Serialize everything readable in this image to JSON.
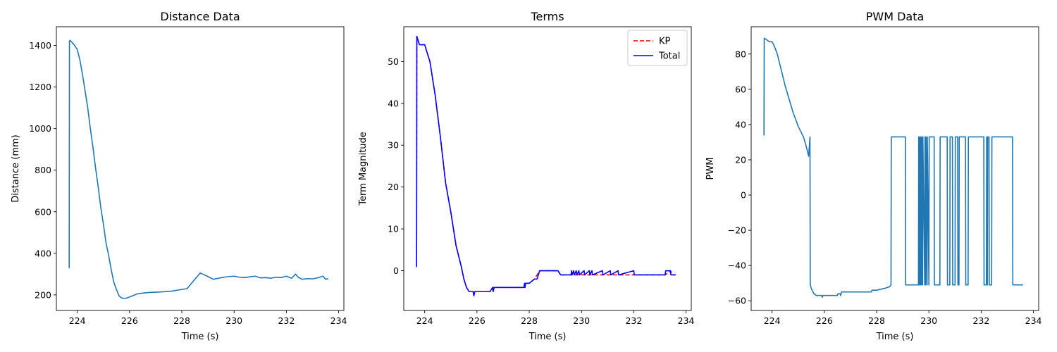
{
  "colors": {
    "default": "#1f77b4",
    "kp": "#ff0000",
    "total": "#0000ff"
  },
  "chart_data": [
    {
      "type": "line",
      "title": "Distance Data",
      "xlabel": "Time (s)",
      "ylabel": "Distance (mm)",
      "xlim": [
        223.2,
        234.2
      ],
      "ylim": [
        125,
        1490
      ],
      "xticks": [
        224,
        226,
        228,
        230,
        232,
        234
      ],
      "yticks": [
        200,
        400,
        600,
        800,
        1000,
        1200,
        1400
      ],
      "series": [
        {
          "color": "#1f77b4",
          "style": "solid",
          "x": [
            223.68,
            223.69,
            223.7,
            223.72,
            223.8,
            223.9,
            224.0,
            224.1,
            224.2,
            224.3,
            224.4,
            224.5,
            224.6,
            224.7,
            224.8,
            224.9,
            225.0,
            225.1,
            225.2,
            225.3,
            225.4,
            225.5,
            225.6,
            225.7,
            225.8,
            225.9,
            226.0,
            226.1,
            226.2,
            226.3,
            226.4,
            226.6,
            226.8,
            227.0,
            227.3,
            227.6,
            227.9,
            228.2,
            228.4,
            228.6,
            228.7,
            228.8,
            229.0,
            229.2,
            229.4,
            229.6,
            229.8,
            230.0,
            230.2,
            230.4,
            230.6,
            230.8,
            231.0,
            231.2,
            231.4,
            231.6,
            231.8,
            232.0,
            232.2,
            232.35,
            232.45,
            232.6,
            232.8,
            233.0,
            233.2,
            233.4,
            233.5,
            233.6
          ],
          "y": [
            330,
            330,
            1420,
            1425,
            1415,
            1400,
            1380,
            1330,
            1260,
            1180,
            1100,
            1000,
            910,
            810,
            720,
            620,
            540,
            450,
            390,
            320,
            260,
            225,
            195,
            185,
            183,
            185,
            190,
            195,
            200,
            205,
            207,
            210,
            212,
            213,
            215,
            218,
            224,
            230,
            260,
            290,
            305,
            300,
            288,
            275,
            280,
            285,
            288,
            290,
            285,
            283,
            287,
            290,
            282,
            283,
            280,
            285,
            283,
            290,
            280,
            300,
            285,
            275,
            278,
            277,
            282,
            290,
            275,
            278
          ]
        }
      ]
    },
    {
      "type": "line",
      "title": "Terms",
      "xlabel": "Time (s)",
      "ylabel": "Term Magnitude",
      "xlim": [
        223.2,
        234.2
      ],
      "ylim": [
        -9.5,
        58.3
      ],
      "xticks": [
        224,
        226,
        228,
        230,
        232,
        234
      ],
      "yticks": [
        0,
        10,
        20,
        30,
        40,
        50
      ],
      "legend": {
        "position": "top-right",
        "entries": [
          "KP",
          "Total"
        ]
      },
      "series": [
        {
          "name": "KP",
          "color": "#ff0000",
          "style": "dashed",
          "x": [
            223.68,
            223.69,
            223.7,
            223.75,
            223.8,
            224.0,
            224.2,
            224.4,
            224.6,
            224.8,
            225.0,
            225.2,
            225.4,
            225.5,
            225.6,
            225.7,
            225.9,
            226.2,
            226.5,
            226.6,
            227.0,
            227.5,
            227.8,
            227.9,
            228.0,
            228.2,
            228.4,
            228.6,
            229.1,
            229.2,
            230.0,
            231.0,
            232.0,
            232.5,
            233.2,
            233.4,
            233.5,
            233.6
          ],
          "y": [
            1,
            1,
            56,
            55,
            54,
            54,
            50,
            42,
            32,
            21,
            14,
            6,
            1,
            -2,
            -4,
            -5,
            -5,
            -5,
            -5,
            -4,
            -4,
            -4,
            -4,
            -3,
            -3,
            -2,
            0,
            0,
            0,
            -1,
            -1,
            -1,
            -1,
            -1,
            -1,
            0,
            -1,
            -1
          ]
        },
        {
          "name": "Total",
          "color": "#0000ff",
          "style": "solid",
          "x": [
            223.68,
            223.69,
            223.7,
            223.75,
            223.8,
            224.0,
            224.2,
            224.4,
            224.6,
            224.8,
            225.0,
            225.2,
            225.4,
            225.5,
            225.6,
            225.7,
            225.85,
            225.88,
            225.92,
            226.2,
            226.5,
            226.6,
            226.62,
            226.66,
            226.7,
            227.0,
            227.5,
            227.8,
            227.82,
            227.84,
            227.86,
            227.9,
            228.0,
            228.2,
            228.3,
            228.4,
            228.6,
            229.1,
            229.2,
            229.6,
            229.62,
            229.64,
            229.7,
            229.72,
            229.8,
            229.82,
            229.9,
            229.92,
            230.1,
            230.12,
            230.3,
            230.32,
            230.4,
            230.42,
            230.8,
            230.82,
            231.1,
            231.12,
            231.4,
            231.42,
            232.0,
            232.02,
            232.4,
            232.42,
            233.2,
            233.22,
            233.4,
            233.42,
            233.6
          ],
          "y": [
            1,
            1,
            56,
            55,
            54,
            54,
            50,
            42,
            32,
            21,
            14,
            6,
            1,
            -2,
            -4,
            -5,
            -5,
            -6,
            -5,
            -5,
            -5,
            -4,
            -5,
            -4,
            -4,
            -4,
            -4,
            -4,
            -3,
            -4,
            -3,
            -3,
            -3,
            -2,
            -2,
            0,
            0,
            0,
            -1,
            -1,
            0,
            -1,
            0,
            -1,
            0,
            -1,
            0,
            -1,
            0,
            -1,
            0,
            -1,
            0,
            -1,
            0,
            -1,
            0,
            -1,
            0,
            -1,
            0,
            -1,
            -1,
            -1,
            -1,
            0,
            0,
            -1,
            -1
          ]
        }
      ]
    },
    {
      "type": "line",
      "title": "PWM Data",
      "xlabel": "Time (s)",
      "ylabel": "PWM",
      "xlim": [
        223.2,
        234.2
      ],
      "ylim": [
        -65.5,
        95.5
      ],
      "xticks": [
        224,
        226,
        228,
        230,
        232,
        234
      ],
      "yticks": [
        -60,
        -40,
        -20,
        0,
        20,
        40,
        60,
        80
      ],
      "series": [
        {
          "color": "#1f77b4",
          "style": "solid",
          "x": [
            223.68,
            223.69,
            223.7,
            223.8,
            223.9,
            224.0,
            224.1,
            224.2,
            224.3,
            224.4,
            224.5,
            224.6,
            224.7,
            224.8,
            224.9,
            225.0,
            225.1,
            225.2,
            225.3,
            225.4,
            225.45,
            225.46,
            225.5,
            225.6,
            225.7,
            225.9,
            225.92,
            225.95,
            226.0,
            226.5,
            226.52,
            226.6,
            226.62,
            226.66,
            227.0,
            227.5,
            227.8,
            227.82,
            228.0,
            228.3,
            228.5,
            228.55,
            228.56,
            229.1,
            229.11,
            229.6,
            229.61,
            229.64,
            229.65,
            229.68,
            229.69,
            229.72,
            229.73,
            229.76,
            229.77,
            229.84,
            229.85,
            229.88,
            229.89,
            229.93,
            229.94,
            230.0,
            230.01,
            230.2,
            230.21,
            230.42,
            230.43,
            230.7,
            230.71,
            230.8,
            230.81,
            230.9,
            230.91,
            231.0,
            231.01,
            231.1,
            231.11,
            231.15,
            231.16,
            231.4,
            231.41,
            231.5,
            231.51,
            232.1,
            232.11,
            232.2,
            232.21,
            232.24,
            232.25,
            232.3,
            232.31,
            232.4,
            232.41,
            233.2,
            233.21,
            233.5,
            233.51,
            233.6
          ],
          "y": [
            34,
            34,
            89,
            88,
            87,
            87,
            84,
            80,
            74,
            68,
            62,
            57,
            52,
            47,
            43,
            39,
            36,
            33,
            28,
            22,
            33,
            -51,
            -53,
            -56,
            -57,
            -57,
            -58,
            -57,
            -57,
            -57,
            -56,
            -56,
            -57,
            -55,
            -55,
            -55,
            -55,
            -54,
            -54,
            -53,
            -52,
            -51,
            33,
            33,
            -51,
            -51,
            33,
            -51,
            33,
            -51,
            33,
            -51,
            33,
            -51,
            33,
            -51,
            33,
            -51,
            33,
            -51,
            33,
            -51,
            33,
            33,
            -51,
            -51,
            33,
            33,
            -51,
            -51,
            33,
            33,
            -51,
            -51,
            33,
            33,
            -51,
            -51,
            33,
            33,
            -51,
            -51,
            33,
            33,
            -51,
            -51,
            33,
            -51,
            33,
            33,
            -51,
            -51,
            33,
            33,
            -51,
            -51,
            -51,
            -51
          ]
        }
      ]
    }
  ]
}
